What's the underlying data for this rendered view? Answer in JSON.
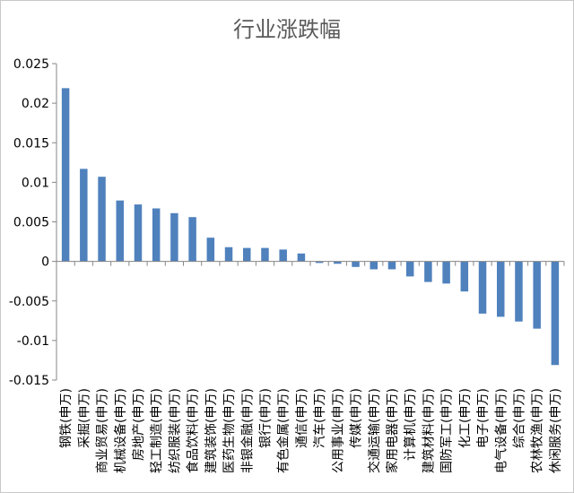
{
  "chart_data": {
    "type": "bar",
    "title": "行业涨跌幅",
    "xlabel": "",
    "ylabel": "",
    "ylim": [
      -0.015,
      0.025
    ],
    "yticks": [
      "0.025",
      "0.02",
      "0.015",
      "0.01",
      "0.005",
      "0",
      "-0.005",
      "-0.01",
      "-0.015"
    ],
    "grid": false,
    "legend": "none",
    "bar_color": "#4F81BD",
    "categories": [
      "钢铁(申万)",
      "采掘(申万)",
      "商业贸易(申万)",
      "机械设备(申万)",
      "房地产(申万)",
      "轻工制造(申万)",
      "纺织服装(申万)",
      "食品饮料(申万)",
      "建筑装饰(申万)",
      "医药生物(申万)",
      "非银金融(申万)",
      "银行(申万)",
      "有色金属(申万)",
      "通信(申万)",
      "汽车(申万)",
      "公用事业(申万)",
      "传媒(申万)",
      "交通运输(申万)",
      "家用电器(申万)",
      "计算机(申万)",
      "建筑材料(申万)",
      "国防军工(申万)",
      "化工(申万)",
      "电子(申万)",
      "电气设备(申万)",
      "综合(申万)",
      "农林牧渔(申万)",
      "休闲服务(申万)"
    ],
    "values": [
      0.0219,
      0.0117,
      0.0107,
      0.0077,
      0.0072,
      0.0067,
      0.0061,
      0.0056,
      0.003,
      0.0018,
      0.0017,
      0.0017,
      0.0015,
      0.001,
      -0.0002,
      -0.0003,
      -0.0007,
      -0.001,
      -0.001,
      -0.0019,
      -0.0026,
      -0.0028,
      -0.0038,
      -0.0066,
      -0.007,
      -0.0076,
      -0.0085,
      -0.0131
    ]
  }
}
